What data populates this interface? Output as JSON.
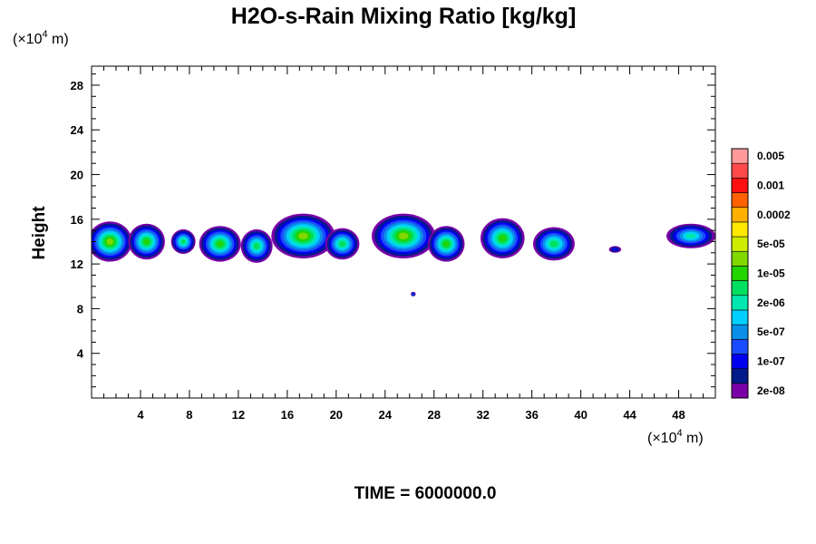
{
  "chart_data": {
    "type": "heatmap",
    "title": "H2O-s-Rain Mixing Ratio [kg/kg]",
    "xunit_base": "(×10",
    "xunit_exp": "4",
    "xunit_tail": " m)",
    "yunit_base": "(×10",
    "yunit_exp": "4",
    "yunit_tail": " m)",
    "ylabel": "Height",
    "xlim": [
      0,
      51
    ],
    "ylim": [
      0,
      29.7
    ],
    "xticks": [
      4,
      8,
      12,
      16,
      20,
      24,
      28,
      32,
      36,
      40,
      44,
      48
    ],
    "yticks": [
      4,
      8,
      12,
      16,
      20,
      24,
      28
    ],
    "time_label": "TIME = 6000000.0",
    "colorbar": {
      "colors": [
        "#7a00a8",
        "#001a8a",
        "#0000ee",
        "#1a4cff",
        "#0a8fe8",
        "#00d0ff",
        "#00e8b0",
        "#00e060",
        "#22d400",
        "#80d800",
        "#ccec00",
        "#ffe800",
        "#ffb000",
        "#ff6000",
        "#ff1010",
        "#ff4a4a",
        "#ff9a9a"
      ],
      "labels": [
        "2e-08",
        "1e-07",
        "5e-07",
        "2e-06",
        "1e-05",
        "5e-05",
        "0.0002",
        "0.001",
        "0.005"
      ]
    },
    "cloud_blobs": [
      {
        "x": 1.5,
        "y": 14.0,
        "w": 1.8,
        "h": 1.8,
        "level": 9
      },
      {
        "x": 4.5,
        "y": 14.0,
        "w": 1.5,
        "h": 1.6,
        "level": 8
      },
      {
        "x": 7.5,
        "y": 14.0,
        "w": 1.0,
        "h": 1.1,
        "level": 7
      },
      {
        "x": 10.5,
        "y": 13.8,
        "w": 1.7,
        "h": 1.6,
        "level": 8
      },
      {
        "x": 13.5,
        "y": 13.6,
        "w": 1.3,
        "h": 1.5,
        "level": 7
      },
      {
        "x": 17.3,
        "y": 14.5,
        "w": 2.6,
        "h": 2.0,
        "level": 9
      },
      {
        "x": 20.5,
        "y": 13.8,
        "w": 1.4,
        "h": 1.4,
        "level": 7
      },
      {
        "x": 25.5,
        "y": 14.5,
        "w": 2.6,
        "h": 2.0,
        "level": 9
      },
      {
        "x": 29.0,
        "y": 13.8,
        "w": 1.5,
        "h": 1.6,
        "level": 8
      },
      {
        "x": 33.6,
        "y": 14.3,
        "w": 1.8,
        "h": 1.8,
        "level": 8
      },
      {
        "x": 37.8,
        "y": 13.8,
        "w": 1.7,
        "h": 1.5,
        "level": 7
      },
      {
        "x": 42.8,
        "y": 13.3,
        "w": 0.5,
        "h": 0.3,
        "level": 2
      },
      {
        "x": 49.0,
        "y": 14.5,
        "w": 2.0,
        "h": 1.1,
        "level": 6
      },
      {
        "x": 26.3,
        "y": 9.3,
        "w": 0.2,
        "h": 0.2,
        "level": 3
      }
    ]
  }
}
